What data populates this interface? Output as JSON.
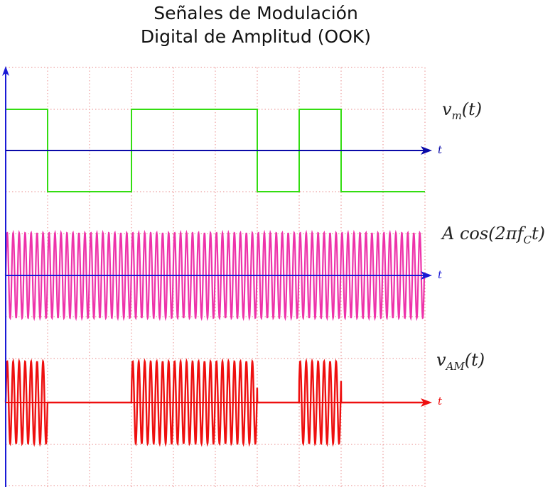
{
  "title": {
    "line1": "Señales de Modulación",
    "line2": "Digital de Amplitud (OOK)"
  },
  "signals": [
    {
      "id": "vm",
      "label_base": "v",
      "label_sub": "m",
      "label_tail": "(t)",
      "axis_label": "t",
      "color": "#33dd11",
      "axis_color": "#0a0aa8"
    },
    {
      "id": "carrier",
      "label_base": "A cos(2πf",
      "label_sub": "C",
      "label_tail": "t)",
      "axis_label": "t",
      "color": "#ee33aa",
      "axis_color": "#1a1ad6"
    },
    {
      "id": "vam",
      "label_base": "v",
      "label_sub": "AM",
      "label_tail": "(t)",
      "axis_label": "t",
      "color": "#ee0f0f",
      "axis_color": "#ee0f0f"
    }
  ],
  "bits": [
    1,
    0,
    0,
    1,
    1,
    1,
    0,
    1,
    0,
    0
  ],
  "carrier_cycles_per_bit": 7,
  "colors": {
    "grid": "#e88a8a",
    "main_axis": "#1a1ad6"
  }
}
